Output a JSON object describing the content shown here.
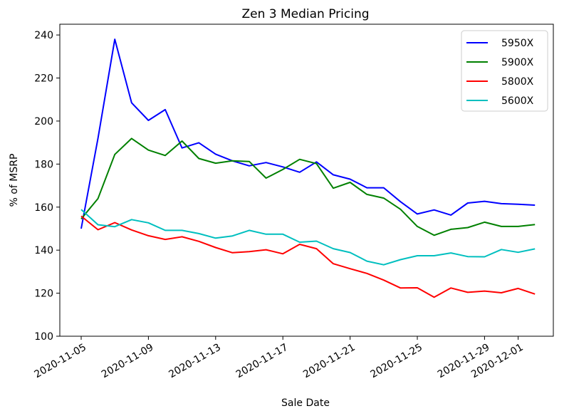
{
  "chart_data": {
    "type": "line",
    "title": "Zen 3 Median Pricing",
    "xlabel": "Sale Date",
    "ylabel": "% of MSRP",
    "ylim": [
      100,
      245
    ],
    "yticks": [
      100,
      120,
      140,
      160,
      180,
      200,
      220,
      240
    ],
    "xticks": [
      "2020-11-05",
      "2020-11-09",
      "2020-11-13",
      "2020-11-17",
      "2020-11-21",
      "2020-11-25",
      "2020-11-29",
      "2020-12-01"
    ],
    "x": [
      "2020-11-05",
      "2020-11-06",
      "2020-11-07",
      "2020-11-08",
      "2020-11-09",
      "2020-11-10",
      "2020-11-11",
      "2020-11-12",
      "2020-11-13",
      "2020-11-14",
      "2020-11-15",
      "2020-11-16",
      "2020-11-17",
      "2020-11-18",
      "2020-11-19",
      "2020-11-20",
      "2020-11-21",
      "2020-11-22",
      "2020-11-23",
      "2020-11-24",
      "2020-11-25",
      "2020-11-26",
      "2020-11-27",
      "2020-11-28",
      "2020-11-29",
      "2020-11-30",
      "2020-12-01",
      "2020-12-02"
    ],
    "legend_position": "top-right",
    "grid": false,
    "series": [
      {
        "name": "5950X",
        "color": "#0000ff",
        "values": [
          150,
          192,
          238,
          208.5,
          200.3,
          205.3,
          187.5,
          189.9,
          184.6,
          181.5,
          179.2,
          180.7,
          178.7,
          176.2,
          181,
          175,
          173,
          169,
          169,
          162.5,
          156.8,
          158.7,
          156.3,
          161.9,
          162.7,
          161.6,
          161.3,
          160.9
        ]
      },
      {
        "name": "5900X",
        "color": "#008000",
        "values": [
          154.5,
          164,
          184.5,
          191.9,
          186.5,
          184,
          190.7,
          182.6,
          180.4,
          181.5,
          181.2,
          173.5,
          177.5,
          182.2,
          180.2,
          168.8,
          171.5,
          165.9,
          164.2,
          159,
          151,
          146.9,
          149.7,
          150.5,
          153,
          151,
          151,
          151.9
        ]
      },
      {
        "name": "5800X",
        "color": "#ff0000",
        "values": [
          155.8,
          149.5,
          152.8,
          149.4,
          146.7,
          145,
          146.2,
          144.1,
          141.2,
          138.8,
          139.3,
          140.2,
          138.3,
          142.7,
          140.7,
          133.7,
          131.4,
          129.2,
          126.1,
          122.4,
          122.5,
          118.1,
          122.4,
          120.4,
          121,
          120.2,
          122.2,
          119.6
        ]
      },
      {
        "name": "5600X",
        "color": "#00bfbf",
        "values": [
          158.9,
          151.8,
          150.9,
          154.2,
          152.7,
          149.2,
          149.2,
          147.7,
          145.6,
          146.6,
          149.2,
          147.4,
          147.4,
          143.7,
          144.2,
          140.7,
          138.9,
          134.9,
          133.2,
          135.6,
          137.4,
          137.4,
          138.7,
          137,
          136.9,
          140.3,
          139,
          140.6
        ]
      }
    ]
  }
}
